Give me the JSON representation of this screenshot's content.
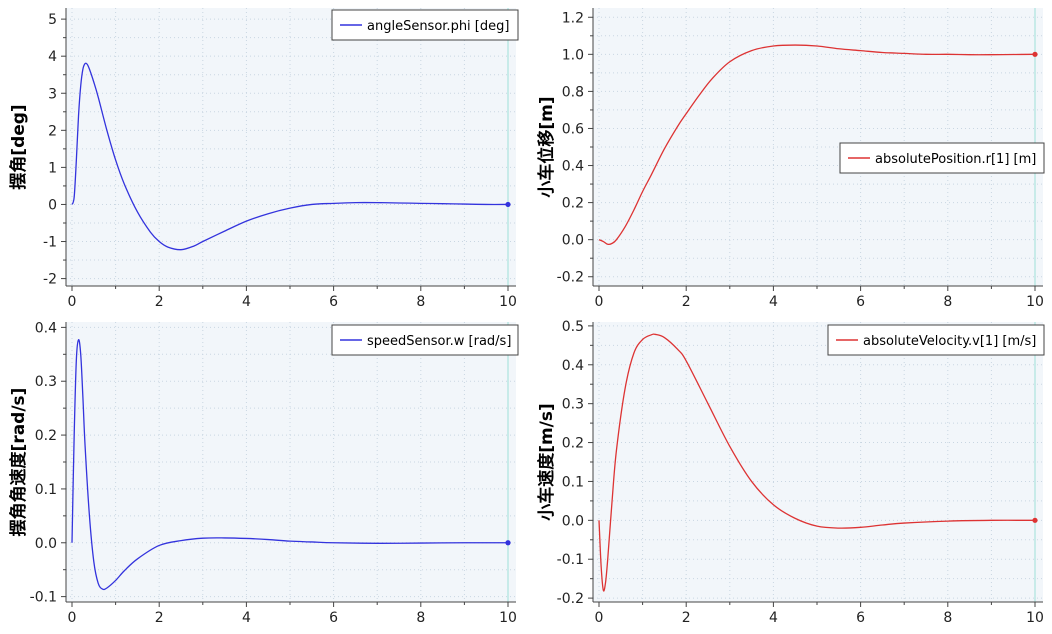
{
  "chart_data": [
    {
      "type": "line",
      "ylabel": "摆角[deg]",
      "xlabel": "",
      "xlim": [
        0,
        10
      ],
      "ylim": [
        -2.2,
        5.3
      ],
      "xticks": [
        0,
        2,
        4,
        6,
        8,
        10
      ],
      "yticks": [
        -2,
        -1,
        0,
        1,
        2,
        3,
        4,
        5
      ],
      "ytick_labels": [
        "-2",
        "-1",
        "0",
        "1",
        "2",
        "3",
        "4",
        "5"
      ],
      "grid": true,
      "legend_position": "top-right",
      "series": [
        {
          "name": "angleSensor.phi [deg]",
          "color": "#3333dd",
          "x": [
            0,
            0.05,
            0.1,
            0.15,
            0.2,
            0.25,
            0.3,
            0.35,
            0.4,
            0.5,
            0.6,
            0.8,
            1.0,
            1.2,
            1.5,
            1.8,
            2.0,
            2.2,
            2.5,
            2.8,
            3.0,
            3.5,
            4.0,
            4.5,
            5.0,
            5.5,
            6.0,
            6.5,
            7.0,
            7.5,
            8.0,
            8.5,
            9.0,
            9.5,
            10.0
          ],
          "y": [
            0,
            0.2,
            1.2,
            2.4,
            3.2,
            3.65,
            3.8,
            3.78,
            3.65,
            3.3,
            2.9,
            2.0,
            1.2,
            0.55,
            -0.2,
            -0.75,
            -1.0,
            -1.15,
            -1.22,
            -1.12,
            -1.0,
            -0.72,
            -0.45,
            -0.25,
            -0.1,
            0.0,
            0.03,
            0.05,
            0.05,
            0.04,
            0.03,
            0.02,
            0.01,
            0.0,
            0.0
          ]
        }
      ]
    },
    {
      "type": "line",
      "ylabel": "小车位移[m]",
      "xlabel": "",
      "xlim": [
        0,
        10
      ],
      "ylim": [
        -0.25,
        1.25
      ],
      "xticks": [
        0,
        2,
        4,
        6,
        8,
        10
      ],
      "yticks": [
        -0.2,
        0,
        0.2,
        0.4,
        0.6,
        0.8,
        1.0,
        1.2
      ],
      "ytick_labels": [
        "-0.2",
        "0.0",
        "0.2",
        "0.4",
        "0.6",
        "0.8",
        "1.0",
        "1.2"
      ],
      "grid": true,
      "legend_position": "center-right",
      "series": [
        {
          "name": "absolutePosition.r[1] [m]",
          "color": "#dd3333",
          "x": [
            0,
            0.1,
            0.2,
            0.3,
            0.4,
            0.6,
            0.8,
            1.0,
            1.2,
            1.5,
            1.8,
            2.0,
            2.3,
            2.6,
            3.0,
            3.5,
            4.0,
            4.5,
            5.0,
            5.5,
            6.0,
            6.5,
            7.0,
            7.5,
            8.0,
            8.5,
            9.0,
            9.5,
            10.0
          ],
          "y": [
            0,
            -0.01,
            -0.025,
            -0.02,
            0.0,
            0.07,
            0.16,
            0.26,
            0.35,
            0.49,
            0.61,
            0.68,
            0.78,
            0.87,
            0.96,
            1.02,
            1.045,
            1.05,
            1.045,
            1.03,
            1.02,
            1.01,
            1.005,
            1.0,
            1.0,
            0.998,
            0.998,
            0.999,
            1.0
          ]
        }
      ]
    },
    {
      "type": "line",
      "ylabel": "摆角角速度[rad/s]",
      "xlabel": "",
      "xlim": [
        0,
        10
      ],
      "ylim": [
        -0.11,
        0.41
      ],
      "xticks": [
        0,
        2,
        4,
        6,
        8,
        10
      ],
      "yticks": [
        -0.1,
        0,
        0.1,
        0.2,
        0.3,
        0.4
      ],
      "ytick_labels": [
        "-0.1",
        "0.0",
        "0.1",
        "0.2",
        "0.3",
        "0.4"
      ],
      "grid": true,
      "legend_position": "top-right",
      "series": [
        {
          "name": "speedSensor.w [rad/s]",
          "color": "#3333dd",
          "x": [
            0,
            0.05,
            0.1,
            0.15,
            0.2,
            0.25,
            0.3,
            0.4,
            0.5,
            0.6,
            0.7,
            0.8,
            1.0,
            1.2,
            1.5,
            2.0,
            2.5,
            3.0,
            3.5,
            4.0,
            4.5,
            5.0,
            5.5,
            6.0,
            7.0,
            8.0,
            9.0,
            10.0
          ],
          "y": [
            0,
            0.2,
            0.34,
            0.377,
            0.35,
            0.27,
            0.18,
            0.05,
            -0.035,
            -0.075,
            -0.086,
            -0.084,
            -0.07,
            -0.052,
            -0.03,
            -0.005,
            0.004,
            0.0085,
            0.009,
            0.008,
            0.006,
            0.003,
            0.0015,
            0.0,
            -0.001,
            -0.0005,
            0.0,
            0.0
          ]
        }
      ]
    },
    {
      "type": "line",
      "ylabel": "小车速度[m/s]",
      "xlabel": "",
      "xlim": [
        0,
        10
      ],
      "ylim": [
        -0.21,
        0.51
      ],
      "xticks": [
        0,
        2,
        4,
        6,
        8,
        10
      ],
      "yticks": [
        -0.2,
        -0.1,
        0,
        0.1,
        0.2,
        0.3,
        0.4,
        0.5
      ],
      "ytick_labels": [
        "-0.2",
        "-0.1",
        "0.0",
        "0.1",
        "0.2",
        "0.3",
        "0.4",
        "0.5"
      ],
      "grid": true,
      "legend_position": "top-right",
      "series": [
        {
          "name": "absoluteVelocity.v[1] [m/s]",
          "color": "#dd3333",
          "x": [
            0,
            0.05,
            0.1,
            0.15,
            0.2,
            0.3,
            0.4,
            0.6,
            0.8,
            1.0,
            1.2,
            1.3,
            1.5,
            1.8,
            2.0,
            2.5,
            3.0,
            3.5,
            4.0,
            4.5,
            5.0,
            5.5,
            6.0,
            6.5,
            7.0,
            8.0,
            9.0,
            10.0
          ],
          "y": [
            0,
            -0.12,
            -0.18,
            -0.16,
            -0.1,
            0.05,
            0.18,
            0.34,
            0.43,
            0.465,
            0.477,
            0.478,
            0.47,
            0.44,
            0.41,
            0.3,
            0.19,
            0.1,
            0.04,
            0.005,
            -0.015,
            -0.02,
            -0.018,
            -0.012,
            -0.007,
            -0.002,
            0.0,
            0.0
          ]
        }
      ]
    }
  ]
}
